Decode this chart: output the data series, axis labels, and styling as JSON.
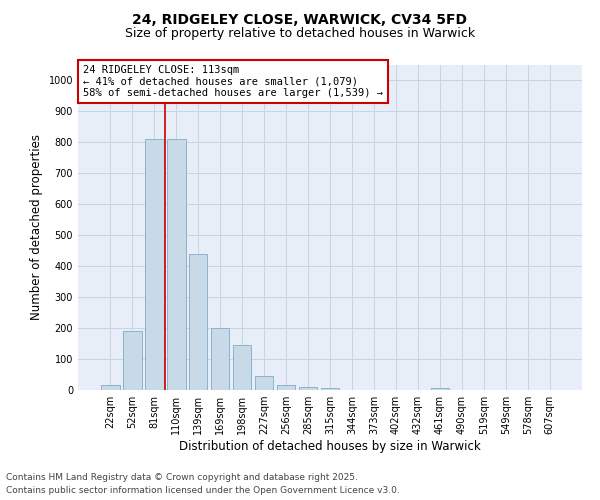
{
  "title_line1": "24, RIDGELEY CLOSE, WARWICK, CV34 5FD",
  "title_line2": "Size of property relative to detached houses in Warwick",
  "xlabel": "Distribution of detached houses by size in Warwick",
  "ylabel": "Number of detached properties",
  "categories": [
    "22sqm",
    "52sqm",
    "81sqm",
    "110sqm",
    "139sqm",
    "169sqm",
    "198sqm",
    "227sqm",
    "256sqm",
    "285sqm",
    "315sqm",
    "344sqm",
    "373sqm",
    "402sqm",
    "432sqm",
    "461sqm",
    "490sqm",
    "519sqm",
    "549sqm",
    "578sqm",
    "607sqm"
  ],
  "values": [
    15,
    190,
    810,
    810,
    440,
    200,
    145,
    45,
    15,
    10,
    5,
    0,
    0,
    0,
    0,
    5,
    0,
    0,
    0,
    0,
    0
  ],
  "bar_color": "#c8d9e8",
  "bar_edge_color": "#8ab4cc",
  "property_line_color": "#cc0000",
  "annotation_text": "24 RIDGELEY CLOSE: 113sqm\n← 41% of detached houses are smaller (1,079)\n58% of semi-detached houses are larger (1,539) →",
  "annotation_box_color": "#ffffff",
  "annotation_box_edge_color": "#cc0000",
  "ylim": [
    0,
    1050
  ],
  "yticks": [
    0,
    100,
    200,
    300,
    400,
    500,
    600,
    700,
    800,
    900,
    1000
  ],
  "grid_color": "#c8d4e4",
  "background_color": "#e8eef8",
  "footer_line1": "Contains HM Land Registry data © Crown copyright and database right 2025.",
  "footer_line2": "Contains public sector information licensed under the Open Government Licence v3.0.",
  "title_fontsize": 10,
  "subtitle_fontsize": 9,
  "tick_fontsize": 7,
  "label_fontsize": 8.5,
  "footer_fontsize": 6.5,
  "annotation_fontsize": 7.5
}
